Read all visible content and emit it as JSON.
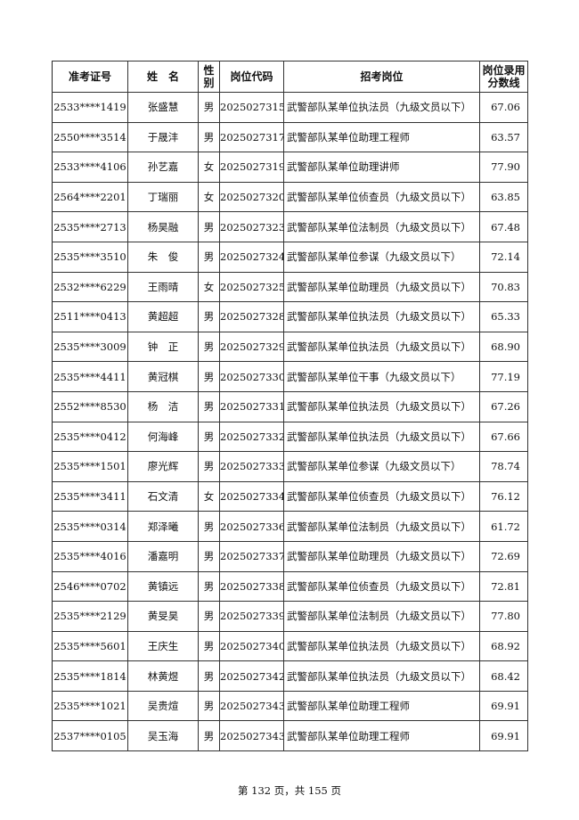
{
  "headers": [
    "准考证号",
    "姓　名",
    "性别",
    "岗位代码",
    "招考岗位",
    "岗位录用分数线"
  ],
  "rows": [
    [
      "2533****1419",
      "张盛慧",
      "男",
      "2025027315",
      "武警部队某单位执法员（九级文员以下）",
      "67.06"
    ],
    [
      "2550****3514",
      "于晟沣",
      "男",
      "2025027317",
      "武警部队某单位助理工程师",
      "63.57"
    ],
    [
      "2533****4106",
      "孙艺嘉",
      "女",
      "2025027319",
      "武警部队某单位助理讲师",
      "77.90"
    ],
    [
      "2564****2201",
      "丁瑞丽",
      "女",
      "2025027320",
      "武警部队某单位侦查员（九级文员以下）",
      "63.85"
    ],
    [
      "2535****2713",
      "杨昊融",
      "男",
      "2025027323",
      "武警部队某单位法制员（九级文员以下）",
      "67.48"
    ],
    [
      "2535****3510",
      "朱　俊",
      "男",
      "2025027324",
      "武警部队某单位参谋（九级文员以下）",
      "72.14"
    ],
    [
      "2532****6229",
      "王雨晴",
      "女",
      "2025027325",
      "武警部队某单位助理员（九级文员以下）",
      "70.83"
    ],
    [
      "2511****0413",
      "黄超超",
      "男",
      "2025027328",
      "武警部队某单位执法员（九级文员以下）",
      "65.33"
    ],
    [
      "2535****3009",
      "钟　正",
      "男",
      "2025027329",
      "武警部队某单位执法员（九级文员以下）",
      "68.90"
    ],
    [
      "2535****4411",
      "黄冠棋",
      "男",
      "2025027330",
      "武警部队某单位干事（九级文员以下）",
      "77.19"
    ],
    [
      "2552****8530",
      "杨　洁",
      "男",
      "2025027331",
      "武警部队某单位执法员（九级文员以下）",
      "67.26"
    ],
    [
      "2535****0412",
      "何海峰",
      "男",
      "2025027332",
      "武警部队某单位执法员（九级文员以下）",
      "67.66"
    ],
    [
      "2535****1501",
      "廖光辉",
      "男",
      "2025027333",
      "武警部队某单位参谋（九级文员以下）",
      "78.74"
    ],
    [
      "2535****3411",
      "石文清",
      "女",
      "2025027334",
      "武警部队某单位侦查员（九级文员以下）",
      "76.12"
    ],
    [
      "2535****0314",
      "郑泽曦",
      "男",
      "2025027336",
      "武警部队某单位法制员（九级文员以下）",
      "61.72"
    ],
    [
      "2535****4016",
      "潘嘉明",
      "男",
      "2025027337",
      "武警部队某单位助理员（九级文员以下）",
      "72.69"
    ],
    [
      "2546****0702",
      "黄镇远",
      "男",
      "2025027338",
      "武警部队某单位侦查员（九级文员以下）",
      "72.81"
    ],
    [
      "2535****2129",
      "黄旻昊",
      "男",
      "2025027339",
      "武警部队某单位法制员（九级文员以下）",
      "77.80"
    ],
    [
      "2535****5601",
      "王庆生",
      "男",
      "2025027340",
      "武警部队某单位执法员（九级文员以下）",
      "68.92"
    ],
    [
      "2535****1814",
      "林黄煜",
      "男",
      "2025027342",
      "武警部队某单位执法员（九级文员以下）",
      "68.42"
    ],
    [
      "2535****1021",
      "吴贵煊",
      "男",
      "2025027343",
      "武警部队某单位助理工程师",
      "69.91"
    ],
    [
      "2537****0105",
      "吴玉海",
      "男",
      "2025027343",
      "武警部队某单位助理工程师",
      "69.91"
    ]
  ],
  "footer": "第 132 页，共 155 页"
}
